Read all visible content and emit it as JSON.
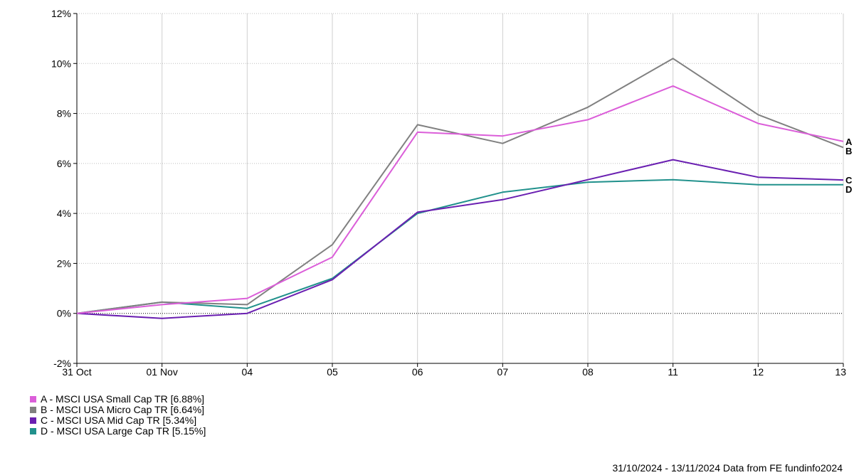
{
  "chart_data": {
    "type": "line",
    "title": "",
    "xlabel": "",
    "ylabel": "",
    "categories": [
      "31 Oct",
      "01 Nov",
      "04",
      "05",
      "06",
      "07",
      "08",
      "11",
      "12",
      "13"
    ],
    "ylim": [
      -2,
      12
    ],
    "yticks": [
      -2,
      0,
      2,
      4,
      6,
      8,
      10,
      12
    ],
    "ytick_labels": [
      "-2%",
      "0%",
      "2%",
      "4%",
      "6%",
      "8%",
      "10%",
      "12%"
    ],
    "grid": true,
    "legend_position": "bottom-left",
    "series": [
      {
        "key": "A",
        "name": "A - MSCI USA Small Cap TR [6.88%]",
        "color": "#db5ed9",
        "values": [
          0,
          0.35,
          0.6,
          2.25,
          7.25,
          7.1,
          7.75,
          9.1,
          7.6,
          6.88
        ]
      },
      {
        "key": "B",
        "name": "B - MSCI USA Micro Cap TR [6.64%]",
        "color": "#808080",
        "values": [
          0,
          0.45,
          0.35,
          2.75,
          7.55,
          6.8,
          8.25,
          10.2,
          7.95,
          6.64
        ]
      },
      {
        "key": "C",
        "name": "C - MSCI USA Mid Cap TR [5.34%]",
        "color": "#6a1fb1",
        "values": [
          0,
          -0.2,
          0.0,
          1.35,
          4.05,
          4.55,
          5.35,
          6.15,
          5.45,
          5.34
        ]
      },
      {
        "key": "D",
        "name": "D - MSCI USA Large Cap TR [5.15%]",
        "color": "#21918c",
        "values": [
          0,
          0.45,
          0.2,
          1.4,
          4.0,
          4.85,
          5.25,
          5.35,
          5.15,
          5.15
        ]
      }
    ]
  },
  "footer": {
    "text": "31/10/2024 - 13/11/2024 Data from FE fundinfo2024"
  }
}
